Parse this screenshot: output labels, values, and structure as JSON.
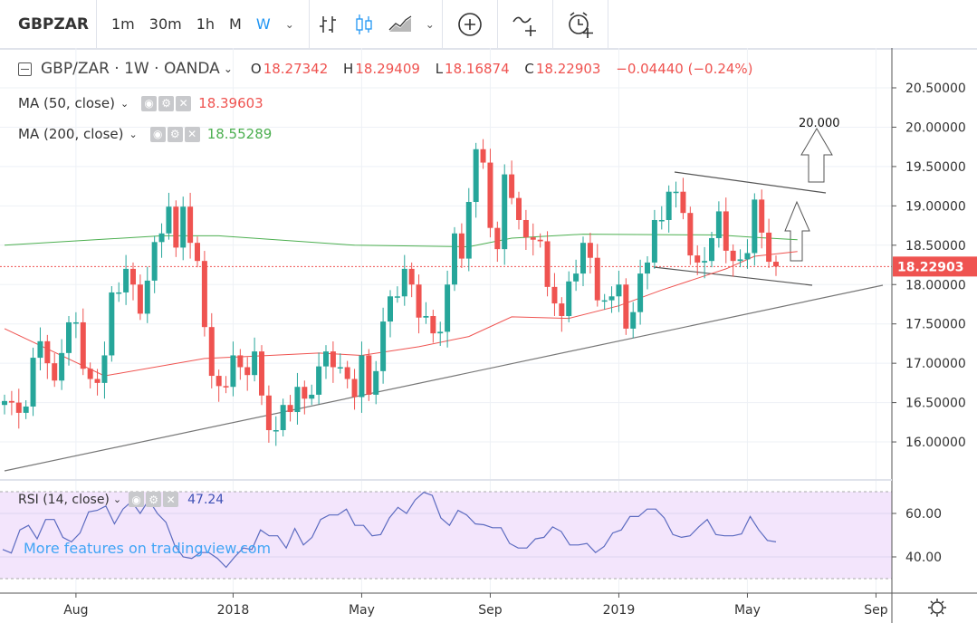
{
  "toolbar": {
    "symbol": "GBPZAR",
    "intervals": [
      "1m",
      "30m",
      "1h",
      "M",
      "W"
    ],
    "active_interval": "W",
    "icons": [
      "bar-chart-icon",
      "candlestick-icon",
      "area-chart-icon",
      "compare-add-icon",
      "indicator-add-icon",
      "alert-add-icon"
    ]
  },
  "legend": {
    "title": "GBP/ZAR · 1W · OANDA",
    "o_label": "O",
    "o": "18.27342",
    "h_label": "H",
    "h": "18.29409",
    "l_label": "L",
    "l": "18.16874",
    "c_label": "C",
    "c": "18.22903",
    "change": "−0.04440 (−0.24%)",
    "ma50_label": "MA (50, close)",
    "ma50_value": "18.39603",
    "ma200_label": "MA (200, close)",
    "ma200_value": "18.55289",
    "rsi_label": "RSI (14, close)",
    "rsi_value": "47.24"
  },
  "watermark": "More features on tradingview.com",
  "colors": {
    "up": "#26a69a",
    "down": "#ef5350",
    "ma50": "#ef5350",
    "ma200": "#4caf50",
    "rsi": "#5c6bc0",
    "rsi_bg": "#f3e5fc",
    "accent": "#2196f3"
  },
  "chart_data": [
    {
      "type": "candlestick",
      "title": "GBP/ZAR · 1W · OANDA",
      "ylim": [
        15.6,
        20.9
      ],
      "y_ticks": [
        "20.50000",
        "20.00000",
        "19.50000",
        "19.00000",
        "18.50000",
        "18.00000",
        "17.50000",
        "17.00000",
        "16.50000",
        "16.00000"
      ],
      "y_tick_values": [
        20.5,
        20.0,
        19.5,
        19.0,
        18.5,
        18.0,
        17.5,
        17.0,
        16.5,
        16.0
      ],
      "x_ticks": [
        "Aug",
        "2018",
        "May",
        "Sep",
        "2019",
        "May",
        "Sep"
      ],
      "x_tick_index": [
        10,
        32,
        50,
        68,
        86,
        104,
        122
      ],
      "last_price": "18.22903",
      "last_price_value": 18.22903,
      "wick": 0.08,
      "close": [
        16.52,
        16.5,
        16.37,
        16.45,
        17.07,
        17.28,
        17.0,
        16.78,
        17.13,
        17.52,
        17.52,
        16.93,
        16.8,
        16.75,
        17.1,
        17.9,
        17.9,
        18.2,
        18.0,
        17.63,
        18.05,
        18.54,
        18.65,
        18.99,
        18.47,
        18.99,
        18.53,
        18.3,
        17.46,
        16.84,
        16.71,
        16.7,
        17.1,
        16.95,
        16.85,
        17.15,
        16.59,
        16.15,
        16.15,
        16.47,
        16.38,
        16.7,
        16.55,
        16.6,
        16.96,
        17.15,
        16.95,
        16.95,
        16.8,
        16.57,
        17.1,
        16.6,
        16.9,
        17.53,
        17.85,
        17.85,
        18.2,
        18.0,
        17.58,
        17.6,
        17.38,
        17.4,
        18.0,
        18.65,
        18.33,
        19.05,
        19.72,
        19.55,
        18.72,
        18.45,
        19.4,
        19.1,
        18.82,
        18.6,
        18.57,
        18.55,
        17.97,
        17.76,
        17.6,
        18.04,
        18.14,
        18.53,
        18.34,
        17.8,
        17.8,
        17.85,
        18.0,
        17.44,
        17.65,
        18.14,
        18.28,
        18.82,
        18.82,
        19.18,
        19.18,
        18.91,
        18.37,
        18.28,
        18.3,
        18.59,
        18.93,
        18.43,
        18.3,
        18.32,
        18.4,
        19.08,
        18.66,
        18.29,
        18.23
      ],
      "series": [
        {
          "name": "MA (50, close)",
          "points": [
            [
              0,
              17.44
            ],
            [
              14,
              16.84
            ],
            [
              28,
              17.06
            ],
            [
              44,
              17.13
            ],
            [
              50,
              17.1
            ],
            [
              58,
              17.21
            ],
            [
              65,
              17.34
            ],
            [
              71,
              17.59
            ],
            [
              79,
              17.57
            ],
            [
              86,
              17.73
            ],
            [
              92,
              17.93
            ],
            [
              97,
              18.08
            ],
            [
              101,
              18.2
            ],
            [
              105,
              18.36
            ],
            [
              111,
              18.42
            ]
          ]
        },
        {
          "name": "MA (200, close)",
          "points": [
            [
              0,
              18.5
            ],
            [
              22,
              18.62
            ],
            [
              30,
              18.62
            ],
            [
              49,
              18.5
            ],
            [
              65,
              18.48
            ],
            [
              71,
              18.59
            ],
            [
              81,
              18.64
            ],
            [
              100,
              18.63
            ],
            [
              105,
              18.6
            ],
            [
              111,
              18.57
            ]
          ]
        }
      ],
      "annotations": [
        {
          "text": "20.000"
        }
      ]
    },
    {
      "type": "line",
      "title": "RSI (14, close)",
      "ylim": [
        30,
        70
      ],
      "y_ticks": [
        "60.00",
        "40.00"
      ],
      "y_tick_values": [
        60,
        40
      ],
      "bands": [
        70,
        30
      ],
      "values": [
        43.4,
        41.8,
        52.4,
        54.5,
        48.3,
        57.2,
        57.2,
        49,
        46.9,
        51,
        60.7,
        61.4,
        63.4,
        55.2,
        62,
        65.5,
        60,
        66.2,
        60,
        55.9,
        45.5,
        40,
        39.3,
        42,
        42,
        39.3,
        35.2,
        40,
        44.1,
        43.4,
        52.4,
        49.7,
        49.7,
        44.1,
        53.1,
        45.5,
        49,
        57.2,
        59.3,
        59.3,
        62,
        54.5,
        54.5,
        49.7,
        50.3,
        57.9,
        62.8,
        60,
        66.2,
        69.7,
        68.3,
        57.9,
        54.5,
        61.4,
        59.3,
        55.2,
        54.8,
        53.4,
        53.4,
        46.2,
        44.1,
        44.1,
        48.3,
        49,
        53.8,
        51.7,
        45.5,
        45.5,
        46.2,
        42,
        44.8,
        51,
        52.4,
        58.6,
        58.6,
        62,
        62,
        57.9,
        50.3,
        49,
        49.7,
        53.8,
        57.2,
        50.3,
        49.7,
        49.7,
        50.6,
        58.6,
        52.4,
        47.6,
        46.9
      ]
    }
  ]
}
